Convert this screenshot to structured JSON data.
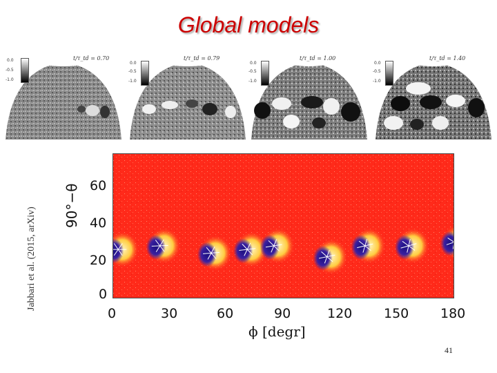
{
  "slide": {
    "title": "Global models",
    "credit": "Jabbari et al. (2015, arXiv)",
    "slide_number": "41"
  },
  "domes": [
    {
      "label": "t/τ_td = 0.70",
      "scale": [
        "0.0",
        "-0.5",
        "-1.0"
      ]
    },
    {
      "label": "t/τ_td = 0.79",
      "scale": [
        "0.0",
        "-0.5",
        "-1.0"
      ]
    },
    {
      "label": "t/τ_td = 1.00",
      "scale": [
        "0.0",
        "-0.5",
        "-1.0"
      ]
    },
    {
      "label": "t/τ_td = 1.40",
      "scale": [
        "0.0",
        "-0.5",
        "-1.0"
      ]
    }
  ],
  "chart_data": {
    "type": "heatmap",
    "xlabel": "ϕ [degr]",
    "ylabel": "90°−θ",
    "x_ticks": [
      "0",
      "30",
      "60",
      "90",
      "120",
      "150",
      "180"
    ],
    "y_ticks": [
      "60",
      "40",
      "20",
      "0"
    ],
    "xlim": [
      0,
      180
    ],
    "ylim": [
      -5,
      75
    ],
    "background_color": "#ff2a1a",
    "spots": [
      {
        "phi": 3,
        "lat": 22
      },
      {
        "phi": 25,
        "lat": 24
      },
      {
        "phi": 52,
        "lat": 20
      },
      {
        "phi": 71,
        "lat": 22
      },
      {
        "phi": 85,
        "lat": 24
      },
      {
        "phi": 113,
        "lat": 18
      },
      {
        "phi": 133,
        "lat": 24
      },
      {
        "phi": 156,
        "lat": 24
      },
      {
        "phi": 180,
        "lat": 26
      }
    ]
  }
}
